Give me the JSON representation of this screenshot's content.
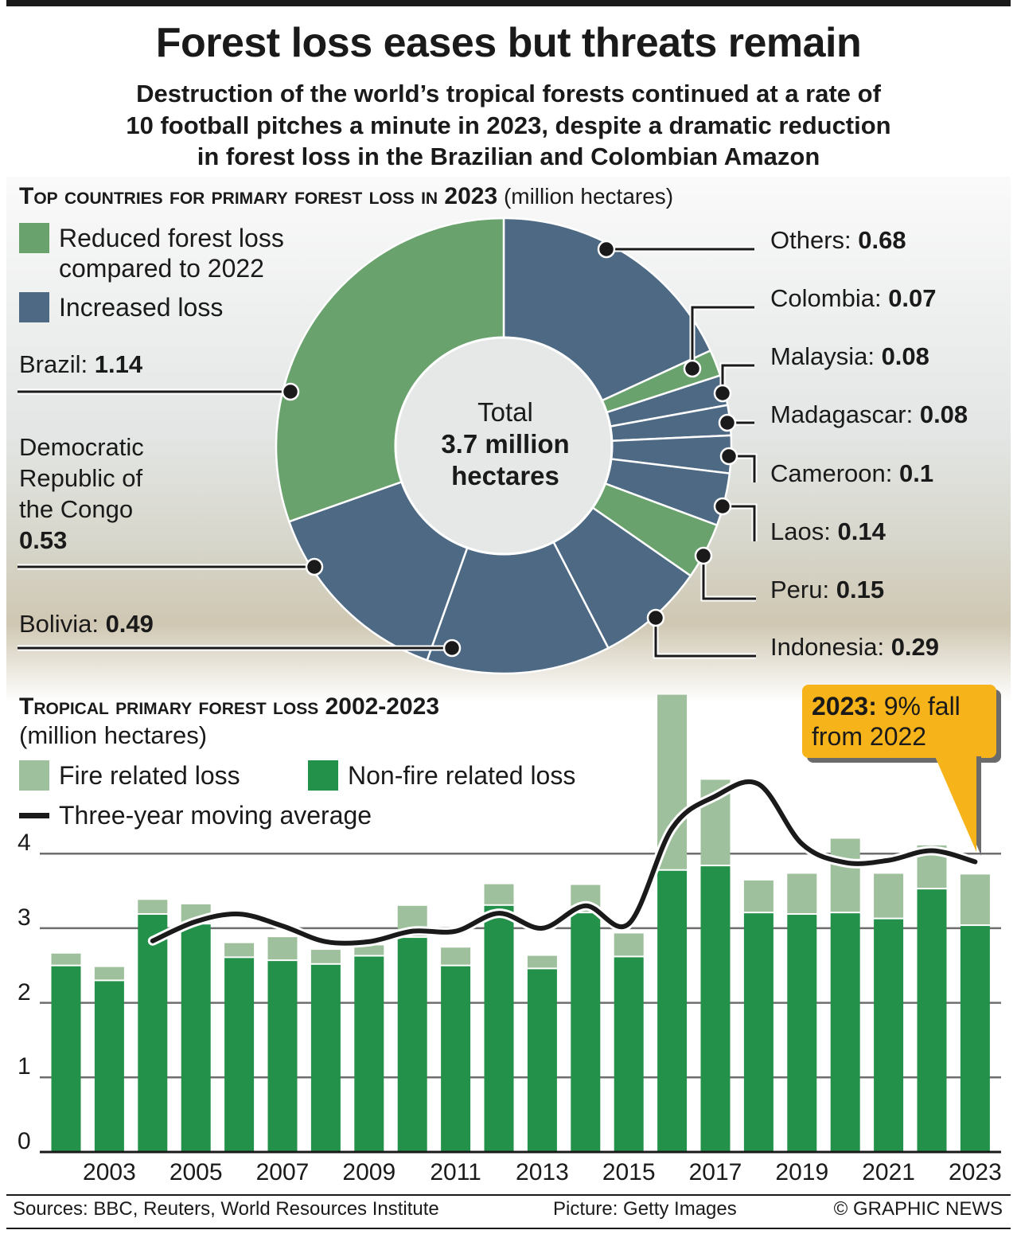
{
  "title": "Forest loss eases but threats remain",
  "subtitle": [
    "Destruction of the world’s tropical forests continued at a rate of",
    "10 football pitches a minute in 2023, despite a dramatic reduction",
    "in forest loss in the Brazilian and Colombian Amazon"
  ],
  "colors": {
    "reduced": "#6aa26e",
    "increased": "#4d6984",
    "fire": "#9fc09c",
    "nonfire": "#23914a",
    "average": "#1a1a1a",
    "callout": "#f7b41a"
  },
  "chart_data": [
    {
      "type": "pie",
      "title": "Top countries for primary forest loss in 2023",
      "unit": "(million hectares)",
      "legend": [
        {
          "label": "Reduced forest loss compared to 2022",
          "color": "#6aa26e"
        },
        {
          "label": "Increased loss",
          "color": "#4d6984"
        }
      ],
      "center_label": {
        "line1": "Total",
        "line2": "3.7 million",
        "line3": "hectares"
      },
      "slices": [
        {
          "name": "Others",
          "value": 0.68,
          "value_label": "0.68",
          "status": "increased"
        },
        {
          "name": "Colombia",
          "value": 0.07,
          "value_label": "0.07",
          "status": "reduced"
        },
        {
          "name": "Malaysia",
          "value": 0.08,
          "value_label": "0.08",
          "status": "increased"
        },
        {
          "name": "Madagascar",
          "value": 0.08,
          "value_label": "0.08",
          "status": "increased"
        },
        {
          "name": "Cameroon",
          "value": 0.1,
          "value_label": "0.1",
          "status": "increased"
        },
        {
          "name": "Laos",
          "value": 0.14,
          "value_label": "0.14",
          "status": "increased"
        },
        {
          "name": "Peru",
          "value": 0.15,
          "value_label": "0.15",
          "status": "reduced"
        },
        {
          "name": "Indonesia",
          "value": 0.29,
          "value_label": "0.29",
          "status": "increased"
        },
        {
          "name": "Bolivia",
          "value": 0.49,
          "value_label": "0.49",
          "status": "increased"
        },
        {
          "name": "Democratic Republic of the Congo",
          "value": 0.53,
          "value_label": "0.53",
          "status": "increased"
        },
        {
          "name": "Brazil",
          "value": 1.14,
          "value_label": "1.14",
          "status": "reduced"
        }
      ]
    },
    {
      "type": "bar",
      "stacked": true,
      "title": "Tropical primary forest loss 2002-2023",
      "unit": "(million hectares)",
      "categories": [
        2002,
        2003,
        2004,
        2005,
        2006,
        2007,
        2008,
        2009,
        2010,
        2011,
        2012,
        2013,
        2014,
        2015,
        2016,
        2017,
        2018,
        2019,
        2020,
        2021,
        2022,
        2023
      ],
      "x_tick_labels": [
        "2003",
        "2005",
        "2007",
        "2009",
        "2011",
        "2013",
        "2015",
        "2017",
        "2019",
        "2021",
        "2023"
      ],
      "y_ticks": [
        0,
        1,
        2,
        3,
        4
      ],
      "ylim": [
        0,
        6.2
      ],
      "grid": true,
      "series": [
        {
          "name": "Non-fire related loss",
          "color": "#23914a",
          "values": [
            2.49,
            2.29,
            3.18,
            3.05,
            2.6,
            2.56,
            2.51,
            2.62,
            2.87,
            2.49,
            3.3,
            2.45,
            3.2,
            2.61,
            3.77,
            3.83,
            3.2,
            3.18,
            3.2,
            3.12,
            3.52,
            3.03
          ]
        },
        {
          "name": "Fire related loss",
          "color": "#9fc09c",
          "values": [
            0.17,
            0.19,
            0.2,
            0.27,
            0.2,
            0.32,
            0.2,
            0.15,
            0.43,
            0.25,
            0.29,
            0.18,
            0.38,
            0.32,
            2.36,
            1.16,
            0.44,
            0.55,
            1.0,
            0.61,
            0.59,
            0.69
          ]
        }
      ],
      "line": {
        "name": "Three-year moving average",
        "x": [
          2004,
          2005,
          2006,
          2007,
          2008,
          2009,
          2010,
          2011,
          2012,
          2013,
          2014,
          2015,
          2016,
          2017,
          2018,
          2019,
          2020,
          2021,
          2022,
          2023
        ],
        "values": [
          2.83,
          3.09,
          3.19,
          3.03,
          2.82,
          2.82,
          2.96,
          2.96,
          3.2,
          3.0,
          3.3,
          3.06,
          4.34,
          4.77,
          4.93,
          4.13,
          3.88,
          3.91,
          4.04,
          3.89
        ]
      },
      "annotation": {
        "bold": "2023:",
        "text": "9% fall",
        "line2": "from 2022"
      }
    }
  ],
  "footer": {
    "sources": "Sources: BBC, Reuters, World Resources Institute",
    "picture": "Picture: Getty Images",
    "credit": "© GRAPHIC NEWS"
  }
}
